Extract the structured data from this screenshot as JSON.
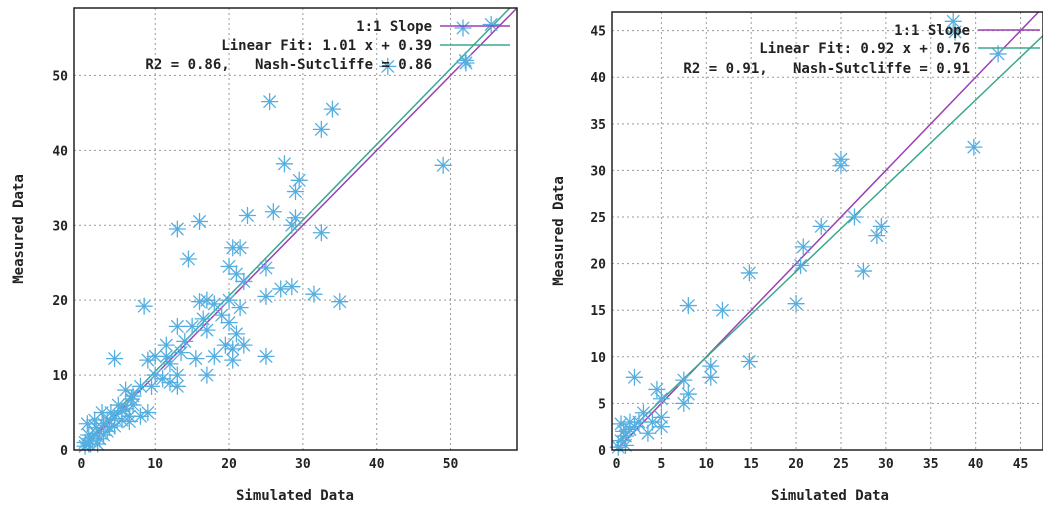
{
  "colors": {
    "slope": "#9b3fb5",
    "fit": "#3aa88f",
    "points": "#55aee0"
  },
  "chart_data": [
    {
      "type": "scatter",
      "xlabel": "Simulated Data",
      "ylabel": "Measured Data",
      "xlim": [
        -1,
        59
      ],
      "ylim": [
        0,
        59
      ],
      "xticks": [
        0,
        10,
        20,
        30,
        40,
        50
      ],
      "yticks": [
        0,
        10,
        20,
        30,
        40,
        50
      ],
      "grid": true,
      "legend_position": "top-right",
      "legend": [
        {
          "label": "1:1 Slope",
          "series": "slope"
        },
        {
          "label": "Linear Fit: 1.01 x + 0.39",
          "series": "fit"
        }
      ],
      "annotation": "R2 = 0.86,   Nash-Sutcliffe = 0.86",
      "slope_line": {
        "slope": 1.0,
        "intercept": 0.0
      },
      "fit_line": {
        "slope": 1.01,
        "intercept": 0.39
      },
      "points": [
        [
          25.5,
          46.5
        ],
        [
          34,
          45.5
        ],
        [
          32.5,
          42.8
        ],
        [
          27.5,
          38.2
        ],
        [
          29.5,
          36
        ],
        [
          49,
          38
        ],
        [
          41.5,
          51.2
        ],
        [
          52,
          52
        ],
        [
          55.5,
          56.8
        ],
        [
          29,
          34.5
        ],
        [
          16,
          30.5
        ],
        [
          13,
          29.5
        ],
        [
          22.5,
          31.3
        ],
        [
          26,
          31.8
        ],
        [
          29,
          31
        ],
        [
          28.5,
          30
        ],
        [
          32.5,
          29
        ],
        [
          14.5,
          25.5
        ],
        [
          20.5,
          27
        ],
        [
          21.5,
          27
        ],
        [
          20,
          24.5
        ],
        [
          25,
          24.3
        ],
        [
          21,
          23.5
        ],
        [
          22,
          22.5
        ],
        [
          28.5,
          21.8
        ],
        [
          27,
          21.5
        ],
        [
          25,
          20.5
        ],
        [
          31.5,
          20.8
        ],
        [
          35,
          19.8
        ],
        [
          8.5,
          19.2
        ],
        [
          16,
          19.8
        ],
        [
          17,
          20
        ],
        [
          18,
          19.5
        ],
        [
          20,
          20
        ],
        [
          21.5,
          19
        ],
        [
          19,
          18
        ],
        [
          16.5,
          17.5
        ],
        [
          20,
          17
        ],
        [
          13,
          16.5
        ],
        [
          15,
          16.5
        ],
        [
          17,
          16
        ],
        [
          21,
          15.5
        ],
        [
          14,
          14.5
        ],
        [
          11.5,
          14
        ],
        [
          19.5,
          14
        ],
        [
          20.5,
          13.5
        ],
        [
          22,
          14
        ],
        [
          10,
          12.5
        ],
        [
          11.5,
          12.5
        ],
        [
          13.5,
          13
        ],
        [
          15.5,
          12.2
        ],
        [
          18,
          12.5
        ],
        [
          20.5,
          12
        ],
        [
          25,
          12.5
        ],
        [
          4.5,
          12.2
        ],
        [
          9,
          12
        ],
        [
          12,
          11.5
        ],
        [
          17,
          10
        ],
        [
          13,
          10
        ],
        [
          10,
          10
        ],
        [
          11,
          9.5
        ],
        [
          12,
          9
        ],
        [
          9.5,
          8.5
        ],
        [
          6,
          8
        ],
        [
          8,
          8.5
        ],
        [
          13,
          8.5
        ],
        [
          7,
          7.2
        ],
        [
          7,
          6
        ],
        [
          5,
          6
        ],
        [
          6,
          5.5
        ],
        [
          9,
          5
        ],
        [
          4,
          5
        ],
        [
          8,
          4.5
        ],
        [
          3.5,
          4
        ],
        [
          5.5,
          4
        ],
        [
          6.5,
          3.8
        ],
        [
          3,
          3.5
        ],
        [
          4.5,
          3.2
        ],
        [
          2,
          3
        ],
        [
          3.5,
          2.5
        ],
        [
          2,
          2.2
        ],
        [
          1,
          2
        ],
        [
          1.5,
          1.5
        ],
        [
          0.5,
          1
        ],
        [
          2.5,
          1.5
        ],
        [
          1,
          0.8
        ],
        [
          0.5,
          0.5
        ],
        [
          3,
          2
        ],
        [
          0.8,
          3.5
        ],
        [
          1.8,
          4
        ],
        [
          2.8,
          5
        ],
        [
          4.5,
          4.2
        ],
        [
          5.5,
          5.2
        ],
        [
          6.5,
          4.5
        ],
        [
          1.2,
          1.2
        ],
        [
          2.2,
          0.8
        ],
        [
          3.8,
          3
        ],
        [
          6.8,
          6.8
        ]
      ]
    },
    {
      "type": "scatter",
      "xlabel": "Simulated Data",
      "ylabel": "Measured Data",
      "xlim": [
        -0.5,
        47.5
      ],
      "ylim": [
        0,
        47
      ],
      "xticks": [
        0,
        5,
        10,
        15,
        20,
        25,
        30,
        35,
        40,
        45
      ],
      "yticks": [
        0,
        5,
        10,
        15,
        20,
        25,
        30,
        35,
        40,
        45
      ],
      "grid": true,
      "legend_position": "top-right",
      "legend": [
        {
          "label": "1:1 Slope",
          "series": "slope"
        },
        {
          "label": "Linear Fit: 0.92 x + 0.76",
          "series": "fit"
        }
      ],
      "annotation": "R2 = 0.91,   Nash-Sutcliffe = 0.91",
      "slope_line": {
        "slope": 1.0,
        "intercept": 0.0
      },
      "fit_line": {
        "slope": 0.92,
        "intercept": 0.76
      },
      "points": [
        [
          37.5,
          46
        ],
        [
          42.5,
          42.5
        ],
        [
          39.8,
          32.5
        ],
        [
          25,
          31.2
        ],
        [
          25,
          30.5
        ],
        [
          26.5,
          25
        ],
        [
          22.8,
          24
        ],
        [
          29.5,
          24
        ],
        [
          29,
          23
        ],
        [
          20.8,
          21.8
        ],
        [
          20.5,
          19.8
        ],
        [
          14.8,
          19
        ],
        [
          27.5,
          19.2
        ],
        [
          8,
          15.5
        ],
        [
          11.8,
          15
        ],
        [
          20,
          15.7
        ],
        [
          10.5,
          9
        ],
        [
          10.5,
          7.8
        ],
        [
          14.8,
          9.5
        ],
        [
          7.5,
          7.5
        ],
        [
          8,
          6
        ],
        [
          7.5,
          5
        ],
        [
          2,
          7.8
        ],
        [
          4.5,
          6.5
        ],
        [
          5,
          5.5
        ],
        [
          5,
          3.5
        ],
        [
          5,
          2.5
        ],
        [
          3,
          4
        ],
        [
          4,
          3
        ],
        [
          2.5,
          3
        ],
        [
          1.5,
          2.2
        ],
        [
          1,
          1.5
        ],
        [
          0.5,
          1
        ],
        [
          0.5,
          2.8
        ],
        [
          1.5,
          3
        ],
        [
          2,
          2.5
        ],
        [
          1,
          0.5
        ],
        [
          0.2,
          0.3
        ],
        [
          3.5,
          1.8
        ],
        [
          0.8,
          2
        ]
      ]
    }
  ]
}
